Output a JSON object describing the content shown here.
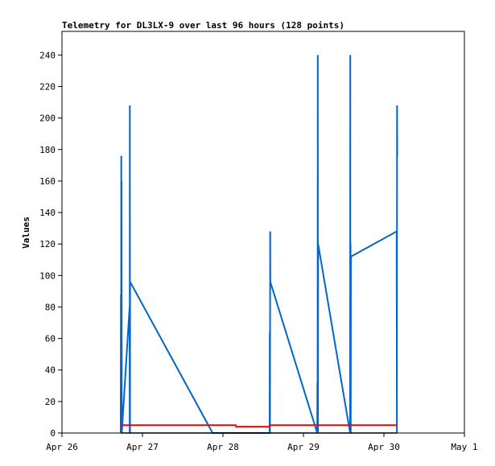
{
  "chart_data": {
    "type": "line",
    "title": "Telemetry for DL3LX-9 over last 96 hours (128 points)",
    "xlabel": "",
    "ylabel": "Values",
    "x_tick_labels": [
      "Apr 26",
      "Apr 27",
      "Apr 28",
      "Apr 29",
      "Apr 30",
      "May 1"
    ],
    "xlim": [
      "2023-04-26 00:00",
      "2023-05-01 00:00"
    ],
    "ylim": [
      0,
      255
    ],
    "y_ticks": [
      0,
      20,
      40,
      60,
      80,
      100,
      120,
      140,
      160,
      180,
      200,
      220,
      240
    ],
    "grid": false,
    "legend": "none",
    "series": [
      {
        "color": "#0066cc",
        "x": [
          "2023-04-26 17:31",
          "2023-04-26 17:35",
          "2023-04-26 17:38",
          "2023-04-26 17:41",
          "2023-04-26 17:43",
          "2023-04-26 17:46",
          "2023-04-26 17:50",
          "2023-04-26 20:10",
          "2023-04-26 20:12",
          "2023-04-26 20:14",
          "2023-04-26 20:17",
          "2023-04-26 20:19",
          "2023-04-27 20:55",
          "2023-04-28 13:55",
          "2023-04-28 13:58",
          "2023-04-28 14:01",
          "2023-04-28 14:05",
          "2023-04-28 14:07",
          "2023-04-29 04:07",
          "2023-04-29 04:10",
          "2023-04-29 04:13",
          "2023-04-29 04:17",
          "2023-04-29 04:20",
          "2023-04-29 04:23",
          "2023-04-29 13:55",
          "2023-04-29 13:58",
          "2023-04-29 14:00",
          "2023-04-29 14:03",
          "2023-04-29 14:06",
          "2023-04-29 14:09",
          "2023-04-30 03:48",
          "2023-04-30 03:52",
          "2023-04-30 03:55",
          "2023-04-30 03:58"
        ],
        "values": [
          0,
          88,
          0,
          176,
          0,
          160,
          0,
          80,
          0,
          208,
          0,
          96,
          0,
          0,
          64,
          0,
          128,
          96,
          0,
          32,
          0,
          240,
          0,
          120,
          0,
          240,
          0,
          120,
          0,
          112,
          128,
          0,
          208,
          176
        ]
      },
      {
        "color": "#ff0000",
        "x": [
          "2023-04-26 17:31",
          "2023-04-28 03:50",
          "2023-04-28 03:55",
          "2023-04-28 13:50",
          "2023-04-28 13:55",
          "2023-04-30 03:58"
        ],
        "values": [
          5,
          5,
          4,
          4,
          5,
          5
        ]
      },
      {
        "color": "#000000",
        "x": [
          "2023-04-26 17:31",
          "2023-04-30 03:58"
        ],
        "values": [
          0,
          0
        ]
      }
    ]
  }
}
